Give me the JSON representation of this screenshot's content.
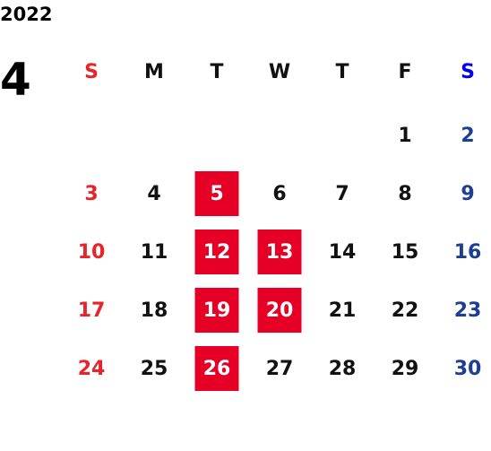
{
  "year": "2022",
  "month": "4",
  "weekdays": [
    "S",
    "M",
    "T",
    "W",
    "T",
    "F",
    "S"
  ],
  "weeks": [
    [
      null,
      null,
      null,
      null,
      null,
      {
        "text": "1",
        "highlighted": false
      },
      {
        "text": "2",
        "highlighted": false
      }
    ],
    [
      {
        "text": "3",
        "highlighted": false
      },
      {
        "text": "4",
        "highlighted": false
      },
      {
        "text": "5",
        "highlighted": true
      },
      {
        "text": "6",
        "highlighted": false
      },
      {
        "text": "7",
        "highlighted": false
      },
      {
        "text": "8",
        "highlighted": false
      },
      {
        "text": "9",
        "highlighted": false
      }
    ],
    [
      {
        "text": "10",
        "highlighted": false
      },
      {
        "text": "11",
        "highlighted": false
      },
      {
        "text": "12",
        "highlighted": true
      },
      {
        "text": "13",
        "highlighted": true
      },
      {
        "text": "14",
        "highlighted": false
      },
      {
        "text": "15",
        "highlighted": false
      },
      {
        "text": "16",
        "highlighted": false
      }
    ],
    [
      {
        "text": "17",
        "highlighted": false
      },
      {
        "text": "18",
        "highlighted": false
      },
      {
        "text": "19",
        "highlighted": true
      },
      {
        "text": "20",
        "highlighted": true
      },
      {
        "text": "21",
        "highlighted": false
      },
      {
        "text": "22",
        "highlighted": false
      },
      {
        "text": "23",
        "highlighted": false
      }
    ],
    [
      {
        "text": "24",
        "highlighted": false
      },
      {
        "text": "25",
        "highlighted": false
      },
      {
        "text": "26",
        "highlighted": true
      },
      {
        "text": "27",
        "highlighted": false
      },
      {
        "text": "28",
        "highlighted": false
      },
      {
        "text": "29",
        "highlighted": false
      },
      {
        "text": "30",
        "highlighted": false
      }
    ]
  ],
  "colors": {
    "default": "#111111",
    "sunday": "#e8232a",
    "saturday": "#1c3f94",
    "saturday_header": "#0000ee",
    "highlight_fill": "#e60026",
    "highlight_text": "#ffffff"
  }
}
